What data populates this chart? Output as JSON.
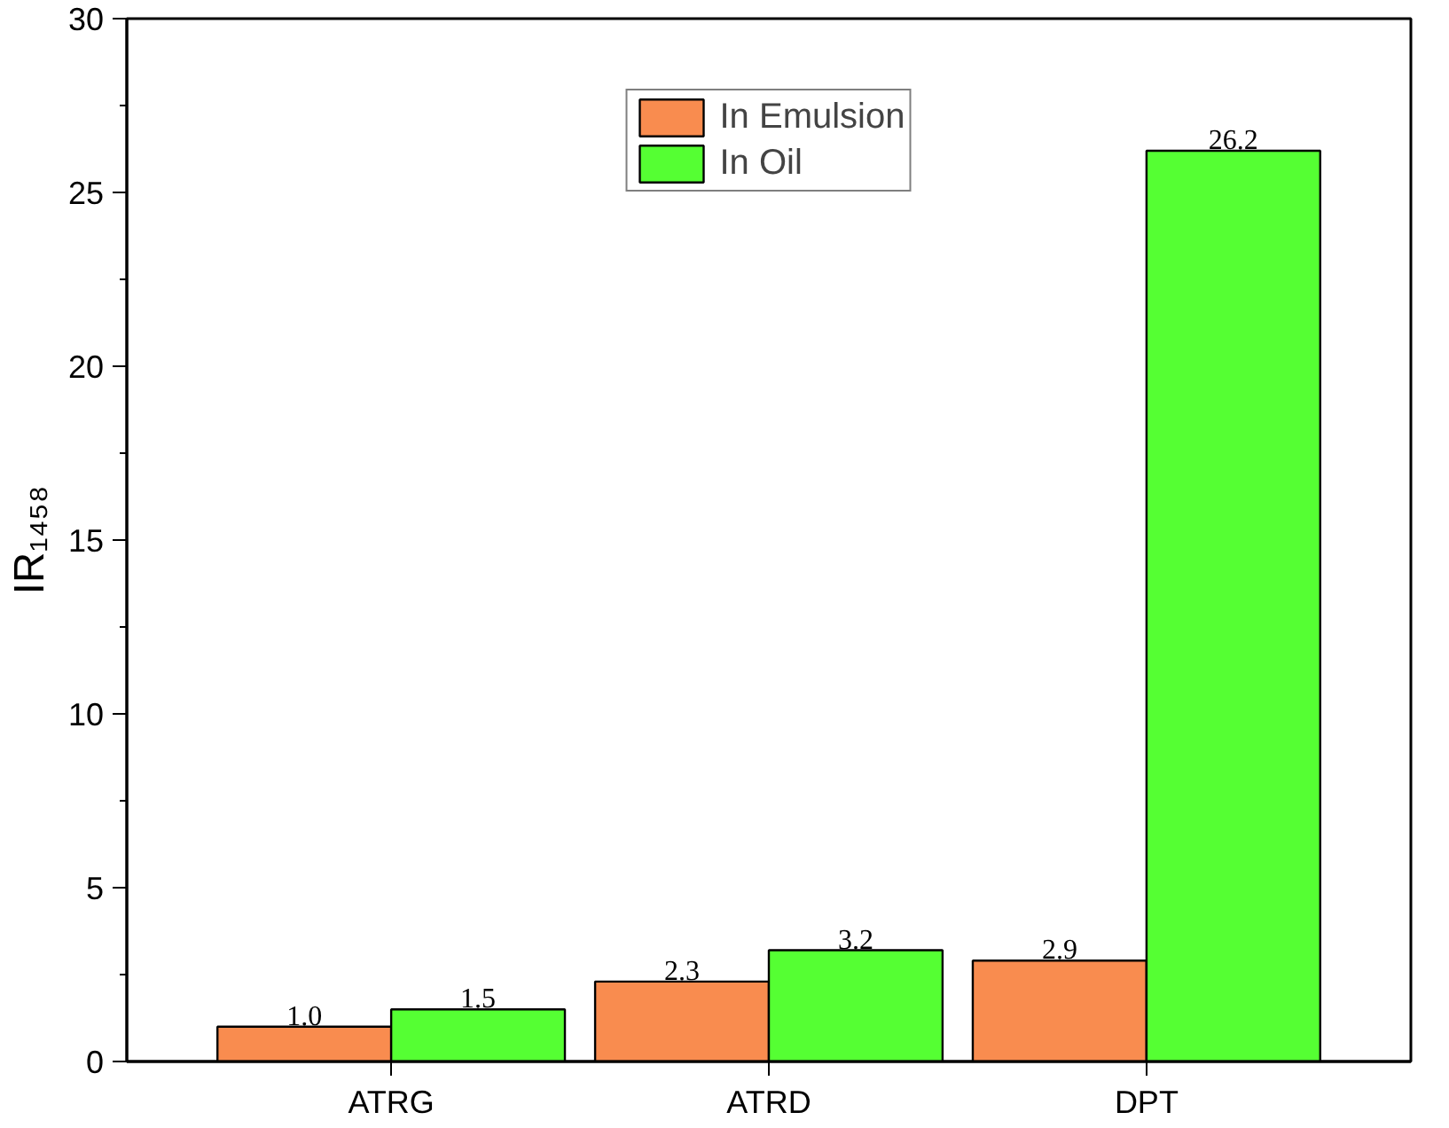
{
  "chart_data": {
    "type": "bar",
    "ylabel": "IR₁₄₅₈",
    "categories": [
      "ATRG",
      "ATRD",
      "DPT"
    ],
    "series": [
      {
        "name": "In Emulsion",
        "color": "#f98c4f",
        "values": [
          1.0,
          2.3,
          2.9
        ],
        "value_labels": [
          "1.0",
          "2.3",
          "2.9"
        ]
      },
      {
        "name": "In Oil",
        "color": "#55ff33",
        "values": [
          1.5,
          3.2,
          26.2
        ],
        "value_labels": [
          "1.5",
          "3.2",
          "26.2"
        ]
      }
    ],
    "ylim": [
      0,
      30
    ],
    "yticks": [
      0,
      5,
      10,
      15,
      20,
      25,
      30
    ],
    "grid": false,
    "legend": "top"
  }
}
